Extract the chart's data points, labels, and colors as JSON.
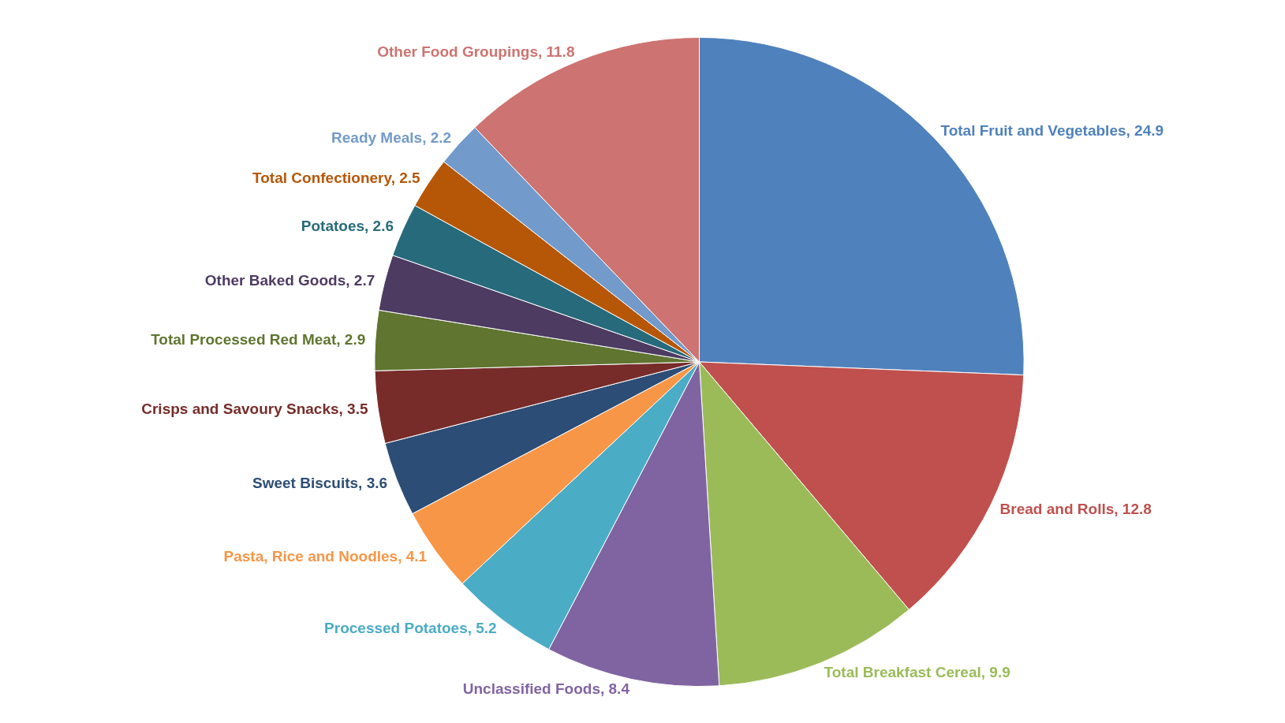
{
  "chart_data": {
    "type": "pie",
    "categories": [
      "Total Fruit and Vegetables",
      "Bread and Rolls",
      "Total Breakfast Cereal",
      "Unclassified Foods",
      "Processed Potatoes",
      "Pasta, Rice and Noodles",
      "Sweet Biscuits",
      "Crisps and Savoury Snacks",
      "Total Processed Red Meat",
      "Other Baked Goods",
      "Potatoes",
      "Total Confectionery",
      "Ready Meals",
      "Other Food Groupings"
    ],
    "values": [
      24.9,
      12.8,
      9.9,
      8.4,
      5.2,
      4.1,
      3.6,
      3.5,
      2.9,
      2.7,
      2.6,
      2.5,
      2.2,
      11.8
    ],
    "value_labels": [
      ", 24.9",
      ", 12.8",
      ", 9.9",
      ", 8.4",
      ", 5.2",
      ", 4.1",
      ", 3.6",
      ", 3.5",
      ", 2.9",
      ", 2.7",
      ", 2.6",
      ", 2.5",
      ", 2.2",
      ", 11.8"
    ],
    "colors": [
      "#4f81bd",
      "#c0504d",
      "#9bbb59",
      "#8064a2",
      "#4bacc6",
      "#f79646",
      "#2c4d75",
      "#772c2a",
      "#5f7530",
      "#4d3b62",
      "#276a7c",
      "#b65708",
      "#729aca",
      "#cd7371"
    ]
  }
}
